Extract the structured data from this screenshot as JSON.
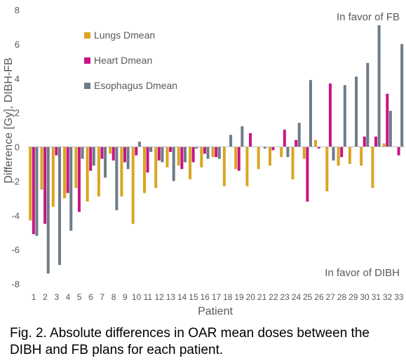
{
  "chart_data": {
    "type": "bar",
    "title": "",
    "xlabel": "Patient",
    "ylabel": "Difference [Gy], DIBH-FB",
    "ylim": [
      -8,
      8
    ],
    "yticks": [
      -8,
      -6,
      -4,
      -2,
      0,
      2,
      4,
      6,
      8
    ],
    "grid": false,
    "legend_position": "top-left",
    "categories": [
      "1",
      "2",
      "3",
      "4",
      "5",
      "6",
      "7",
      "8",
      "9",
      "10",
      "11",
      "12",
      "13",
      "14",
      "15",
      "16",
      "17",
      "18",
      "19",
      "20",
      "21",
      "22",
      "23",
      "24",
      "25",
      "26",
      "27",
      "28",
      "29",
      "30",
      "31",
      "32",
      "33"
    ],
    "series": [
      {
        "name": "Lungs Dmean",
        "color": "#DAA520",
        "values": [
          -4.3,
          -2.5,
          -3.5,
          -3.0,
          -2.4,
          -3.2,
          -2.9,
          -0.4,
          -2.9,
          -4.5,
          -2.7,
          -2.4,
          -1.2,
          -1.1,
          -1.9,
          -1.2,
          -0.6,
          -2.3,
          -1.3,
          -2.3,
          -1.3,
          -1.1,
          -0.6,
          -1.9,
          -0.7,
          0.4,
          -2.6,
          -1.1,
          -1.0,
          -1.1,
          -2.4,
          0.2,
          0.0
        ]
      },
      {
        "name": "Heart Dmean",
        "color": "#C71585",
        "values": [
          -5.1,
          -4.5,
          -0.5,
          -2.7,
          -3.8,
          -1.4,
          -0.7,
          -0.8,
          -0.9,
          -0.5,
          -1.5,
          -0.8,
          -0.3,
          -1.3,
          -0.9,
          -0.4,
          -0.6,
          0.0,
          -1.4,
          0.8,
          0.0,
          -0.2,
          1.0,
          0.4,
          -3.2,
          -0.1,
          3.7,
          -0.6,
          0.0,
          0.6,
          0.6,
          3.1,
          -0.5
        ]
      },
      {
        "name": "Esophagus Dmean",
        "color": "#6E7B88",
        "values": [
          -5.2,
          -7.4,
          -6.9,
          -4.9,
          -0.7,
          -1.1,
          -1.8,
          -3.7,
          -1.3,
          0.3,
          -0.3,
          -0.9,
          -2.0,
          -0.9,
          -0.1,
          -0.7,
          -0.7,
          0.7,
          1.2,
          0.0,
          -0.1,
          0.0,
          -0.6,
          1.4,
          3.9,
          0.0,
          -0.8,
          3.6,
          4.1,
          4.9,
          7.1,
          2.1,
          6.0
        ]
      }
    ],
    "annotations": [
      "In favor of FB",
      "In favor of DIBH"
    ]
  },
  "caption": "Fig. 2. Absolute differences in OAR mean doses between the DIBH and FB plans for each patient."
}
